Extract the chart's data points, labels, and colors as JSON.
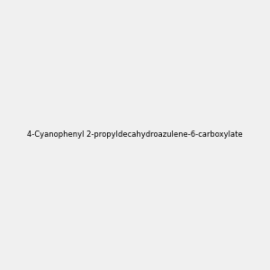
{
  "background_color": "#f0f0f0",
  "line_color": "#1a1a1a",
  "atom_colors": {
    "N": "#0000ff",
    "O": "#ff0000",
    "C": "#1a1a1a"
  },
  "title": "4-Cyanophenyl 2-propyldecahydroazulene-6-carboxylate"
}
